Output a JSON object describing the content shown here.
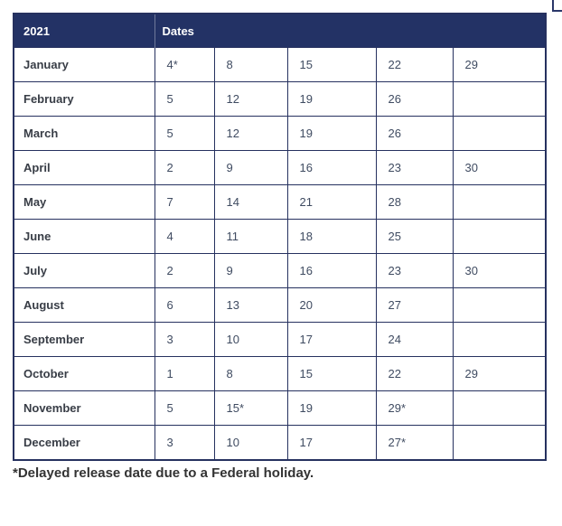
{
  "page": {
    "background_color": "#ffffff"
  },
  "table": {
    "header": {
      "year": "2021",
      "dates_label": "Dates"
    },
    "colors": {
      "header_background": "#233265",
      "header_text": "#ffffff",
      "border": "#26315f",
      "month_text": "#383d46",
      "date_text": "#3f4b61"
    },
    "rows": [
      {
        "month": "January",
        "dates": [
          "4*",
          "8",
          "15",
          "22",
          "29"
        ]
      },
      {
        "month": "February",
        "dates": [
          "5",
          "12",
          "19",
          "26",
          ""
        ]
      },
      {
        "month": "March",
        "dates": [
          "5",
          "12",
          "19",
          "26",
          ""
        ]
      },
      {
        "month": "April",
        "dates": [
          "2",
          "9",
          "16",
          "23",
          "30"
        ]
      },
      {
        "month": "May",
        "dates": [
          "7",
          "14",
          "21",
          "28",
          ""
        ]
      },
      {
        "month": "June",
        "dates": [
          "4",
          "11",
          "18",
          "25",
          ""
        ]
      },
      {
        "month": "July",
        "dates": [
          "2",
          "9",
          "16",
          "23",
          "30"
        ]
      },
      {
        "month": "August",
        "dates": [
          "6",
          "13",
          "20",
          "27",
          ""
        ]
      },
      {
        "month": "September",
        "dates": [
          "3",
          "10",
          "17",
          "24",
          ""
        ]
      },
      {
        "month": "October",
        "dates": [
          "1",
          "8",
          "15",
          "22",
          "29"
        ]
      },
      {
        "month": "November",
        "dates": [
          "5",
          "15*",
          "19",
          "29*",
          ""
        ]
      },
      {
        "month": "December",
        "dates": [
          "3",
          "10",
          "17",
          "27*",
          ""
        ]
      }
    ]
  },
  "footnote": {
    "text": "*Delayed release date due to a Federal holiday."
  }
}
